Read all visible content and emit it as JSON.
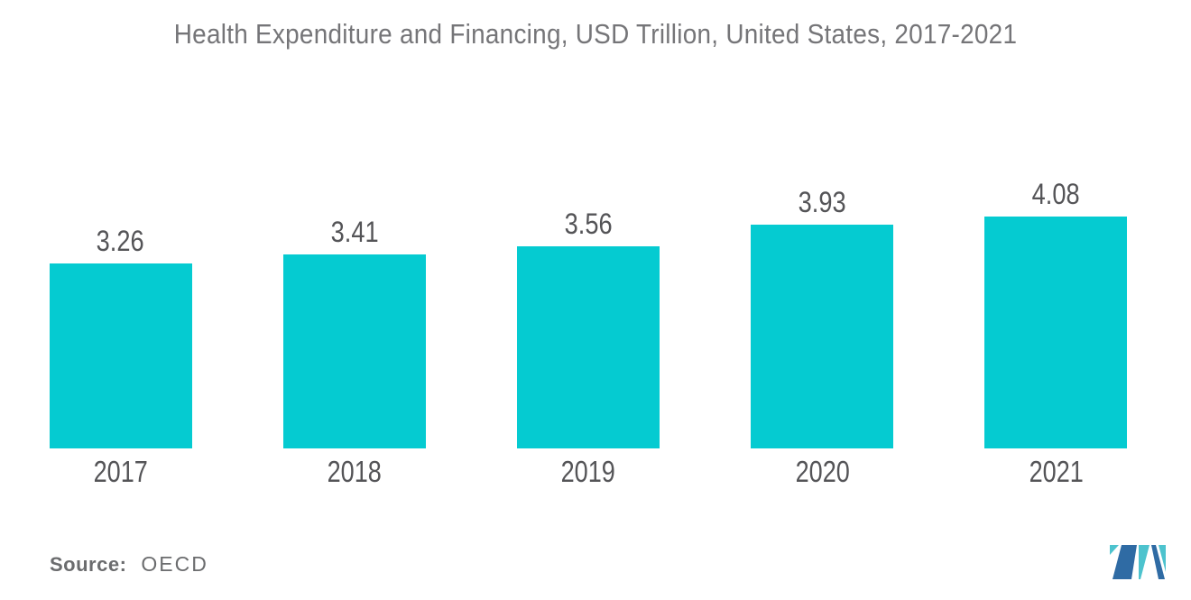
{
  "title": "Health Expenditure and Financing, USD Trillion, United States, 2017-2021",
  "source": {
    "label": "Source:",
    "value": "OECD"
  },
  "logo": {
    "icon": "mordor-intelligence-m-logo"
  },
  "colors": {
    "page_bg": "#FFFFFF",
    "bar": "#05CBD1",
    "title_text": "#757578",
    "label_text": "#545457",
    "source_text": "#6B6C6E",
    "logo_dark_blue": "#2F6BA4",
    "logo_teal": "#4DC3CE"
  },
  "chart_data": {
    "type": "bar",
    "title": "Health Expenditure and Financing, USD Trillion, United States, 2017-2021",
    "categories": [
      "2017",
      "2018",
      "2019",
      "2020",
      "2021"
    ],
    "values": [
      3.26,
      3.41,
      3.56,
      3.93,
      4.08
    ],
    "value_labels": [
      "3.26",
      "3.41",
      "3.56",
      "3.93",
      "4.08"
    ],
    "xlabel": "",
    "ylabel": "",
    "ylim": [
      0,
      4.7
    ],
    "grid": false,
    "legend": false,
    "axes_visible": false,
    "value_label_position": "above-bars",
    "bar_color": "#05CBD1"
  }
}
